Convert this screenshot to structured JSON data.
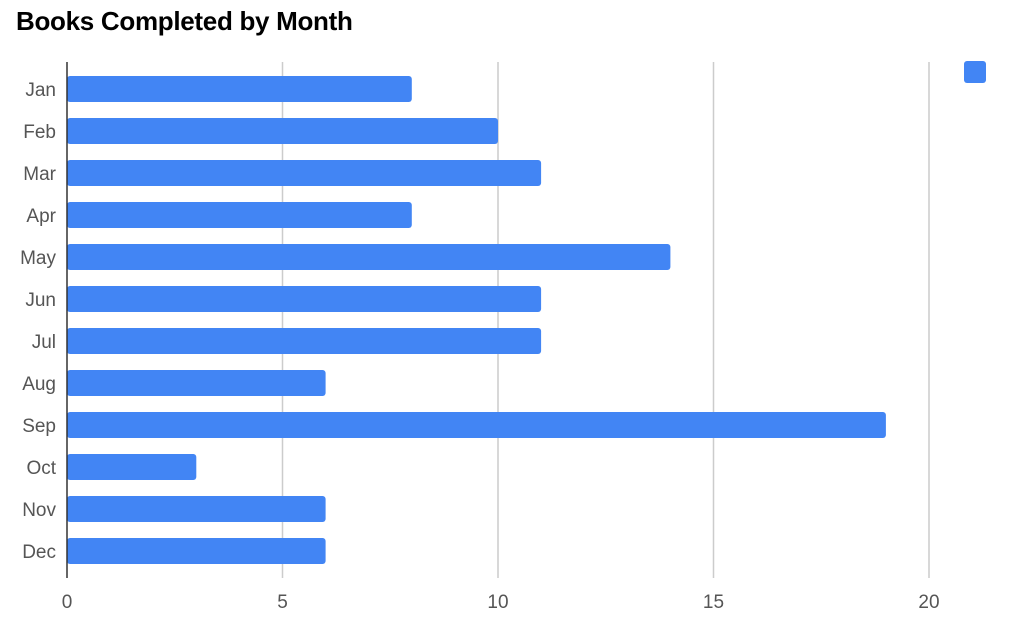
{
  "chart_data": {
    "type": "bar",
    "orientation": "horizontal",
    "title": "Books Completed by Month",
    "categories": [
      "Jan",
      "Feb",
      "Mar",
      "Apr",
      "May",
      "Jun",
      "Jul",
      "Aug",
      "Sep",
      "Oct",
      "Nov",
      "Dec"
    ],
    "series": [
      {
        "values": [
          8,
          10,
          11,
          8,
          14,
          11,
          11,
          6,
          19,
          3,
          6,
          6
        ],
        "color": "#4285f4"
      }
    ],
    "xlim": [
      0,
      20
    ],
    "xticks": [
      0,
      5,
      10,
      15,
      20
    ],
    "xlabel": "",
    "ylabel": "",
    "grid": "vertical",
    "legend": {
      "position": "top-right",
      "entries": [
        {
          "label": "",
          "color": "#4285f4"
        }
      ]
    }
  }
}
